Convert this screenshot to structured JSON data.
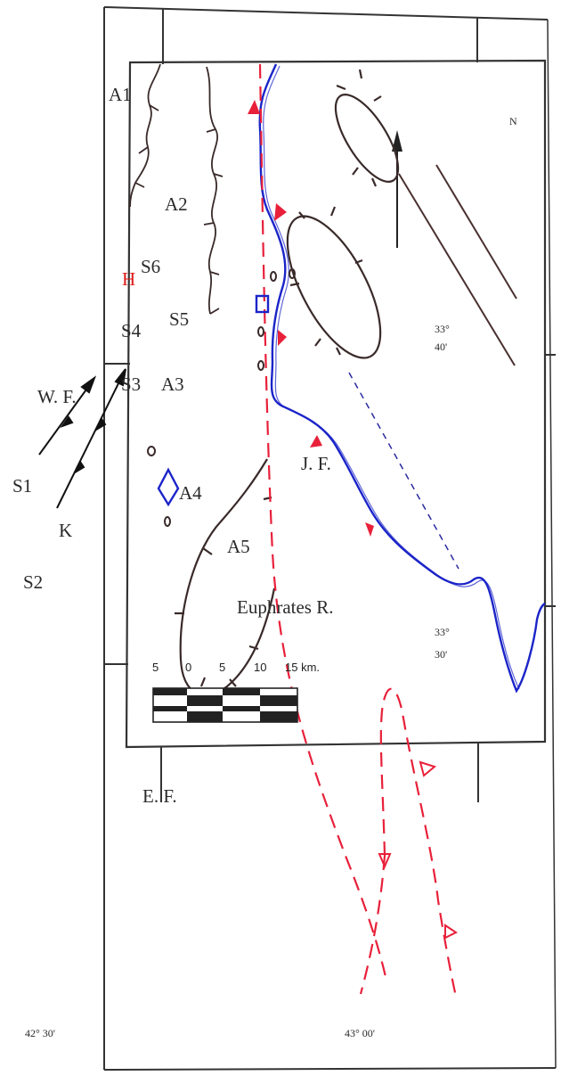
{
  "map": {
    "north_label": "N",
    "areas": [
      "A1",
      "A2",
      "A3",
      "A4",
      "A5"
    ],
    "stations": [
      "S1",
      "S2",
      "S3",
      "S4",
      "S5",
      "S6"
    ],
    "h_label": "H",
    "wf_label": "W. F.",
    "ef_label": "E. F.",
    "jf_label": "J. F.",
    "k_label": "K",
    "river_label": "Euphrates R.",
    "lat_upper": {
      "deg": "33°",
      "min": "40'"
    },
    "lat_lower": {
      "deg": "33°",
      "min": "30'"
    },
    "lon_left": "42° 30'",
    "lon_center": "43° 00'",
    "scale": {
      "labels": [
        "5",
        "0",
        "5",
        "10",
        "15 km."
      ]
    },
    "colors": {
      "river": "#1b24c8",
      "fault": "#e8203a",
      "outline": "#3a2a2a",
      "h_color": "#e01818",
      "marker_blue": "#1b24c8"
    }
  }
}
